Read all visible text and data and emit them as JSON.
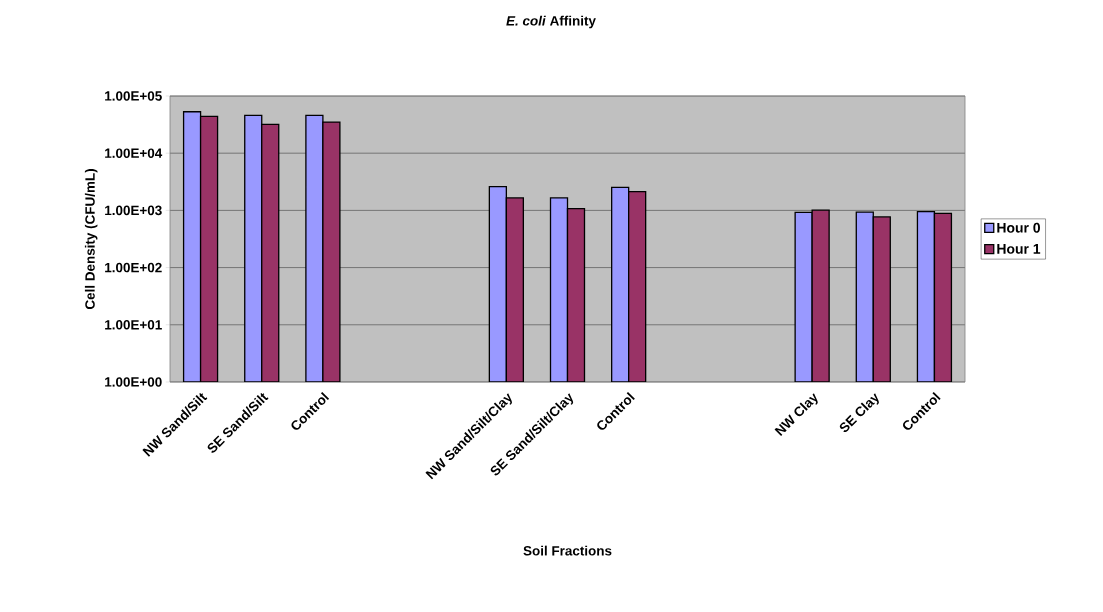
{
  "chart_data": {
    "type": "bar",
    "title": "*E. coli* Affinity",
    "xlabel": "Soil Fractions",
    "ylabel": "Cell Density (CFU/mL)",
    "categories": [
      "NW Sand/Silt",
      "SE Sand/Silt",
      "Control",
      null,
      null,
      "NW Sand/Silt/Clay",
      "SE Sand/Silt/Clay",
      "Control",
      null,
      null,
      "NW Clay",
      "SE Clay",
      "Control"
    ],
    "series": [
      {
        "name": "Hour 0",
        "color": "#9999ff",
        "values": [
          53000,
          46000,
          46000,
          null,
          null,
          2600,
          1650,
          2530,
          null,
          null,
          920,
          935,
          950
        ]
      },
      {
        "name": "Hour 1",
        "color": "#993366",
        "values": [
          44000,
          32000,
          35000,
          null,
          null,
          1650,
          1070,
          2130,
          null,
          null,
          1010,
          770,
          890
        ]
      }
    ],
    "log": "y",
    "ylim": [
      1,
      100000
    ],
    "yticks": [
      {
        "value": 1,
        "label": "1.00E+00"
      },
      {
        "value": 10,
        "label": "1.00E+01"
      },
      {
        "value": 100,
        "label": "1.00E+02"
      },
      {
        "value": 1000,
        "label": "1.00E+03"
      },
      {
        "value": 10000,
        "label": "1.00E+04"
      },
      {
        "value": 100000,
        "label": "1.00E+05"
      }
    ],
    "grid": "y",
    "legend": "right"
  }
}
